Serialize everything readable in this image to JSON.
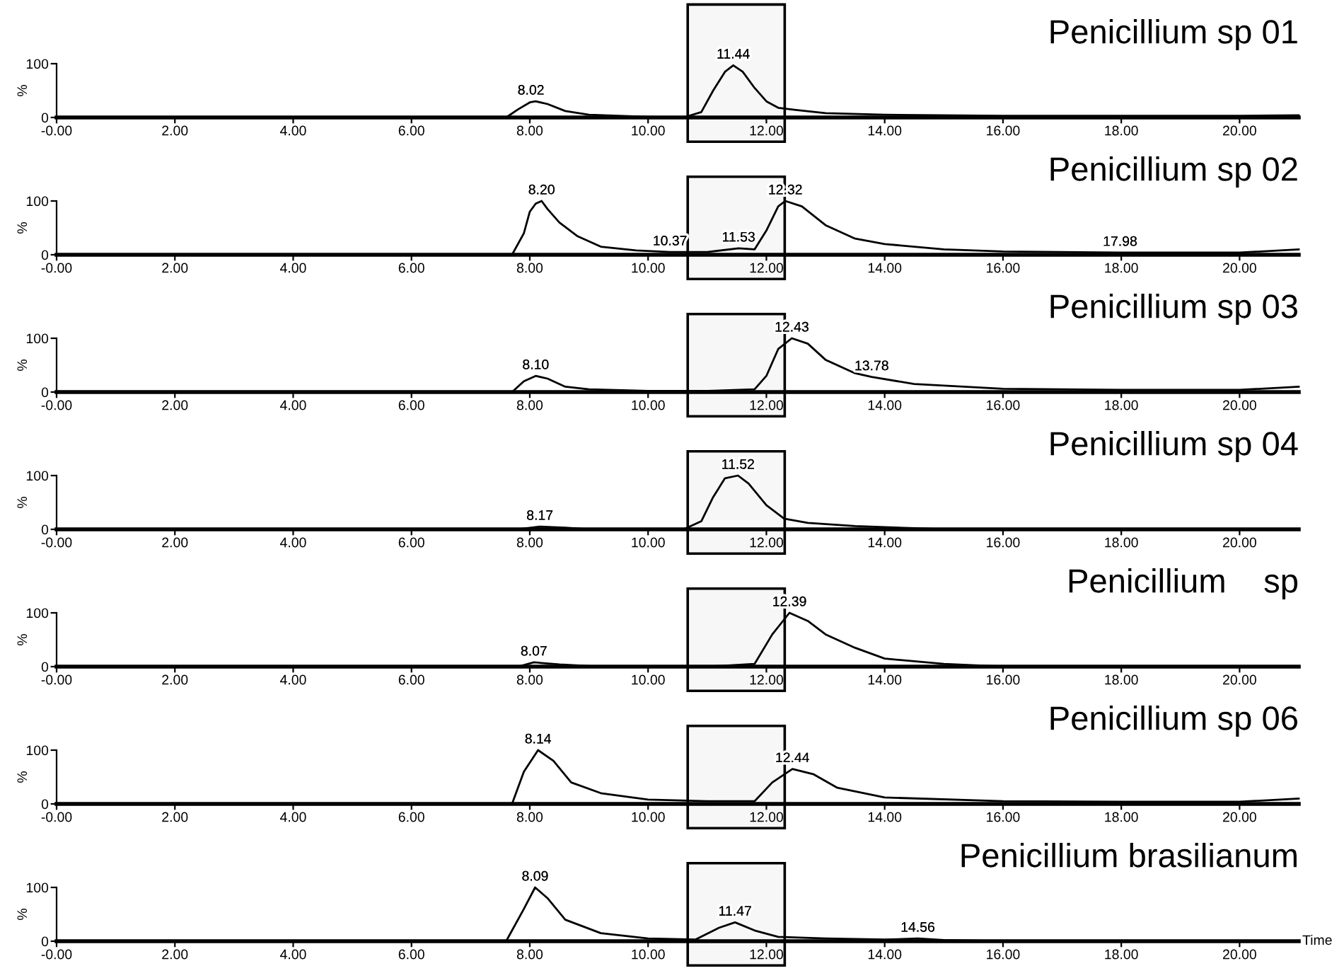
{
  "chart_data": [
    {
      "type": "line",
      "title": "Penicillium sp 01",
      "ylabel": "%",
      "xlim": [
        0,
        21
      ],
      "ylim": [
        0,
        100
      ],
      "xticks": [
        {
          "value": 0,
          "label": "-0.00"
        },
        {
          "value": 2,
          "label": "2.00"
        },
        {
          "value": 4,
          "label": "4.00"
        },
        {
          "value": 6,
          "label": "6.00"
        },
        {
          "value": 8,
          "label": "8.00"
        },
        {
          "value": 10,
          "label": "10.00"
        },
        {
          "value": 12,
          "label": "12.00"
        },
        {
          "value": 14,
          "label": "14.00"
        },
        {
          "value": 16,
          "label": "16.00"
        },
        {
          "value": 18,
          "label": "18.00"
        },
        {
          "value": 20,
          "label": "20.00"
        }
      ],
      "yticks": [
        0,
        100
      ],
      "grid": false,
      "legend": false,
      "series": [
        {
          "color": "#000000",
          "x": [
            0,
            7.6,
            7.8,
            8.0,
            8.1,
            8.3,
            8.6,
            9,
            9.5,
            10,
            10.6,
            10.9,
            11.1,
            11.3,
            11.44,
            11.6,
            11.8,
            12.0,
            12.2,
            12.5,
            13,
            14,
            16,
            18,
            20,
            21
          ],
          "values": [
            0,
            0,
            15,
            28,
            30,
            25,
            12,
            5,
            3,
            1,
            0,
            10,
            50,
            85,
            97,
            85,
            55,
            30,
            18,
            14,
            8,
            5,
            3,
            3,
            3,
            4
          ]
        }
      ],
      "annotations": [
        {
          "text": "8.02",
          "x": 8.02,
          "y": 30
        },
        {
          "text": "11.44",
          "x": 11.44,
          "y": 97
        }
      ],
      "bands": [
        {
          "axis": "x",
          "from": 10.67,
          "to": 12.31,
          "color": "#f7f7f7"
        }
      ]
    },
    {
      "type": "line",
      "title": "Penicillium sp 02",
      "ylabel": "%",
      "xlim": [
        0,
        21
      ],
      "ylim": [
        0,
        100
      ],
      "xticks": [
        {
          "value": 0,
          "label": "-0.00"
        },
        {
          "value": 2,
          "label": "2.00"
        },
        {
          "value": 4,
          "label": "4.00"
        },
        {
          "value": 6,
          "label": "6.00"
        },
        {
          "value": 8,
          "label": "8.00"
        },
        {
          "value": 10,
          "label": "10.00"
        },
        {
          "value": 12,
          "label": "12.00"
        },
        {
          "value": 14,
          "label": "14.00"
        },
        {
          "value": 16,
          "label": "16.00"
        },
        {
          "value": 18,
          "label": "18.00"
        },
        {
          "value": 20,
          "label": "20.00"
        }
      ],
      "yticks": [
        0,
        100
      ],
      "grid": false,
      "legend": false,
      "series": [
        {
          "color": "#000000",
          "x": [
            0,
            7.7,
            7.9,
            8.0,
            8.1,
            8.2,
            8.3,
            8.5,
            8.8,
            9.2,
            9.8,
            10.37,
            11.0,
            11.53,
            11.8,
            12.0,
            12.2,
            12.32,
            12.6,
            13,
            13.5,
            14,
            15,
            16,
            17.98,
            20,
            21
          ],
          "values": [
            0,
            0,
            40,
            80,
            95,
            100,
            85,
            60,
            35,
            15,
            8,
            5,
            5,
            12,
            10,
            45,
            90,
            100,
            90,
            55,
            30,
            20,
            10,
            6,
            4,
            4,
            10
          ]
        }
      ],
      "annotations": [
        {
          "text": "8.20",
          "x": 8.2,
          "y": 100
        },
        {
          "text": "10.37",
          "x": 10.37,
          "y": 5
        },
        {
          "text": "11.53",
          "x": 11.53,
          "y": 12
        },
        {
          "text": "12.32",
          "x": 12.32,
          "y": 100
        },
        {
          "text": "17.98",
          "x": 17.98,
          "y": 4
        }
      ],
      "bands": [
        {
          "axis": "x",
          "from": 10.67,
          "to": 12.31,
          "color": "#f7f7f7"
        }
      ]
    },
    {
      "type": "line",
      "title": "Penicillium sp 03",
      "ylabel": "%",
      "xlim": [
        0,
        21
      ],
      "ylim": [
        0,
        100
      ],
      "xticks": [
        {
          "value": 0,
          "label": "-0.00"
        },
        {
          "value": 2,
          "label": "2.00"
        },
        {
          "value": 4,
          "label": "4.00"
        },
        {
          "value": 6,
          "label": "6.00"
        },
        {
          "value": 8,
          "label": "8.00"
        },
        {
          "value": 10,
          "label": "10.00"
        },
        {
          "value": 12,
          "label": "12.00"
        },
        {
          "value": 14,
          "label": "14.00"
        },
        {
          "value": 16,
          "label": "16.00"
        },
        {
          "value": 18,
          "label": "18.00"
        },
        {
          "value": 20,
          "label": "20.00"
        }
      ],
      "yticks": [
        0,
        100
      ],
      "grid": false,
      "legend": false,
      "series": [
        {
          "color": "#000000",
          "x": [
            0,
            7.7,
            7.9,
            8.1,
            8.3,
            8.6,
            9,
            10,
            11,
            11.8,
            12.0,
            12.2,
            12.43,
            12.7,
            13,
            13.5,
            13.78,
            14.5,
            16,
            18,
            20,
            21
          ],
          "values": [
            0,
            0,
            20,
            30,
            25,
            10,
            5,
            2,
            2,
            5,
            30,
            80,
            100,
            90,
            60,
            35,
            28,
            15,
            6,
            4,
            4,
            10
          ]
        }
      ],
      "annotations": [
        {
          "text": "8.10",
          "x": 8.1,
          "y": 30
        },
        {
          "text": "12.43",
          "x": 12.43,
          "y": 100
        },
        {
          "text": "13.78",
          "x": 13.78,
          "y": 28
        }
      ],
      "bands": [
        {
          "axis": "x",
          "from": 10.67,
          "to": 12.31,
          "color": "#f7f7f7"
        }
      ]
    },
    {
      "type": "line",
      "title": "Penicillium sp 04",
      "ylabel": "%",
      "xlim": [
        0,
        21
      ],
      "ylim": [
        0,
        100
      ],
      "xticks": [
        {
          "value": 0,
          "label": "-0.00"
        },
        {
          "value": 2,
          "label": "2.00"
        },
        {
          "value": 4,
          "label": "4.00"
        },
        {
          "value": 6,
          "label": "6.00"
        },
        {
          "value": 8,
          "label": "8.00"
        },
        {
          "value": 10,
          "label": "10.00"
        },
        {
          "value": 12,
          "label": "12.00"
        },
        {
          "value": 14,
          "label": "14.00"
        },
        {
          "value": 16,
          "label": "16.00"
        },
        {
          "value": 18,
          "label": "18.00"
        },
        {
          "value": 20,
          "label": "20.00"
        }
      ],
      "yticks": [
        0,
        100
      ],
      "grid": false,
      "legend": false,
      "series": [
        {
          "color": "#000000",
          "x": [
            0,
            7.8,
            8.17,
            8.6,
            9,
            10,
            10.6,
            10.9,
            11.1,
            11.3,
            11.52,
            11.7,
            12.0,
            12.3,
            12.7,
            13.5,
            14.5,
            15,
            21
          ],
          "values": [
            0,
            0,
            5,
            3,
            0,
            0,
            0,
            15,
            60,
            95,
            100,
            85,
            45,
            20,
            12,
            6,
            2,
            0,
            0
          ]
        }
      ],
      "annotations": [
        {
          "text": "8.17",
          "x": 8.17,
          "y": 5
        },
        {
          "text": "11.52",
          "x": 11.52,
          "y": 100
        }
      ],
      "bands": [
        {
          "axis": "x",
          "from": 10.67,
          "to": 12.31,
          "color": "#f7f7f7"
        }
      ]
    },
    {
      "type": "line",
      "title": "Penicillium    sp",
      "ylabel": "%",
      "xlim": [
        0,
        21
      ],
      "ylim": [
        0,
        100
      ],
      "xticks": [
        {
          "value": 0,
          "label": "-0.00"
        },
        {
          "value": 2,
          "label": "2.00"
        },
        {
          "value": 4,
          "label": "4.00"
        },
        {
          "value": 6,
          "label": "6.00"
        },
        {
          "value": 8,
          "label": "8.00"
        },
        {
          "value": 10,
          "label": "10.00"
        },
        {
          "value": 12,
          "label": "12.00"
        },
        {
          "value": 14,
          "label": "14.00"
        },
        {
          "value": 16,
          "label": "16.00"
        },
        {
          "value": 18,
          "label": "18.00"
        },
        {
          "value": 20,
          "label": "20.00"
        }
      ],
      "yticks": [
        0,
        100
      ],
      "grid": false,
      "legend": false,
      "series": [
        {
          "color": "#000000",
          "x": [
            0,
            7.8,
            8.07,
            8.5,
            9,
            10,
            11,
            11.8,
            12.1,
            12.39,
            12.7,
            13,
            13.5,
            14,
            15,
            16,
            21
          ],
          "values": [
            0,
            0,
            8,
            4,
            1,
            0,
            0,
            5,
            60,
            100,
            85,
            60,
            35,
            15,
            5,
            0,
            0
          ]
        }
      ],
      "annotations": [
        {
          "text": "8.07",
          "x": 8.07,
          "y": 8
        },
        {
          "text": "12.39",
          "x": 12.39,
          "y": 100
        }
      ],
      "bands": [
        {
          "axis": "x",
          "from": 10.67,
          "to": 12.31,
          "color": "#f7f7f7"
        }
      ]
    },
    {
      "type": "line",
      "title": "Penicillium sp 06",
      "ylabel": "%",
      "xlim": [
        0,
        21
      ],
      "ylim": [
        0,
        100
      ],
      "xticks": [
        {
          "value": 0,
          "label": "-0.00"
        },
        {
          "value": 2,
          "label": "2.00"
        },
        {
          "value": 4,
          "label": "4.00"
        },
        {
          "value": 6,
          "label": "6.00"
        },
        {
          "value": 8,
          "label": "8.00"
        },
        {
          "value": 10,
          "label": "10.00"
        },
        {
          "value": 12,
          "label": "12.00"
        },
        {
          "value": 14,
          "label": "14.00"
        },
        {
          "value": 16,
          "label": "16.00"
        },
        {
          "value": 18,
          "label": "18.00"
        },
        {
          "value": 20,
          "label": "20.00"
        }
      ],
      "yticks": [
        0,
        100
      ],
      "grid": false,
      "legend": false,
      "series": [
        {
          "color": "#000000",
          "x": [
            0,
            7.7,
            7.9,
            8.14,
            8.4,
            8.7,
            9.2,
            10,
            11,
            11.8,
            12.1,
            12.44,
            12.8,
            13.2,
            14,
            16,
            18,
            20,
            21
          ],
          "values": [
            0,
            0,
            60,
            100,
            80,
            40,
            20,
            8,
            5,
            5,
            40,
            65,
            55,
            30,
            12,
            5,
            4,
            4,
            10
          ]
        }
      ],
      "annotations": [
        {
          "text": "8.14",
          "x": 8.14,
          "y": 100
        },
        {
          "text": "12.44",
          "x": 12.44,
          "y": 65
        }
      ],
      "bands": [
        {
          "axis": "x",
          "from": 10.67,
          "to": 12.31,
          "color": "#f7f7f7"
        }
      ]
    },
    {
      "type": "line",
      "title": "Penicillium brasilianum",
      "ylabel": "%",
      "xlabel": "Time",
      "xlim": [
        0,
        21
      ],
      "ylim": [
        0,
        100
      ],
      "xticks": [
        {
          "value": 0,
          "label": "-0.00"
        },
        {
          "value": 2,
          "label": "2.00"
        },
        {
          "value": 4,
          "label": "4.00"
        },
        {
          "value": 6,
          "label": "6.00"
        },
        {
          "value": 8,
          "label": "8.00"
        },
        {
          "value": 10,
          "label": "10.00"
        },
        {
          "value": 12,
          "label": "12.00"
        },
        {
          "value": 14,
          "label": "14.00"
        },
        {
          "value": 16,
          "label": "16.00"
        },
        {
          "value": 18,
          "label": "18.00"
        },
        {
          "value": 20,
          "label": "20.00"
        }
      ],
      "yticks": [
        0,
        100
      ],
      "grid": false,
      "legend": false,
      "series": [
        {
          "color": "#000000",
          "x": [
            0,
            7.6,
            7.9,
            8.09,
            8.3,
            8.6,
            9.2,
            10,
            10.8,
            11.2,
            11.47,
            11.8,
            12.2,
            13,
            14,
            14.56,
            15,
            16,
            21
          ],
          "values": [
            0,
            0,
            60,
            100,
            80,
            40,
            15,
            5,
            3,
            25,
            35,
            20,
            8,
            5,
            3,
            5,
            2,
            0,
            0
          ]
        }
      ],
      "annotations": [
        {
          "text": "8.09",
          "x": 8.09,
          "y": 100
        },
        {
          "text": "11.47",
          "x": 11.47,
          "y": 35
        },
        {
          "text": "14.56",
          "x": 14.56,
          "y": 5
        }
      ],
      "bands": [
        {
          "axis": "x",
          "from": 10.67,
          "to": 12.31,
          "color": "#f7f7f7"
        }
      ]
    }
  ]
}
